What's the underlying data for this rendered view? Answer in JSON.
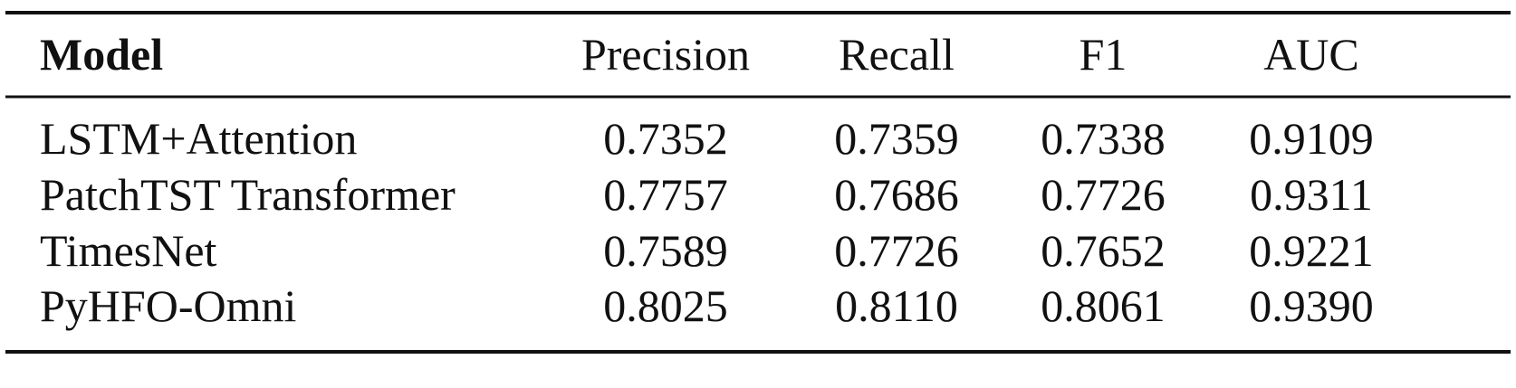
{
  "table": {
    "header": [
      "Model",
      "Precision",
      "Recall",
      "F1",
      "AUC"
    ],
    "rows": [
      [
        "LSTM+Attention",
        "0.7352",
        "0.7359",
        "0.7338",
        "0.9109"
      ],
      [
        "PatchTST Transformer",
        "0.7757",
        "0.7686",
        "0.7726",
        "0.9311"
      ],
      [
        "TimesNet",
        "0.7589",
        "0.7726",
        "0.7652",
        "0.9221"
      ],
      [
        "PyHFO-Omni",
        "0.8025",
        "0.8110",
        "0.8061",
        "0.9390"
      ]
    ]
  }
}
